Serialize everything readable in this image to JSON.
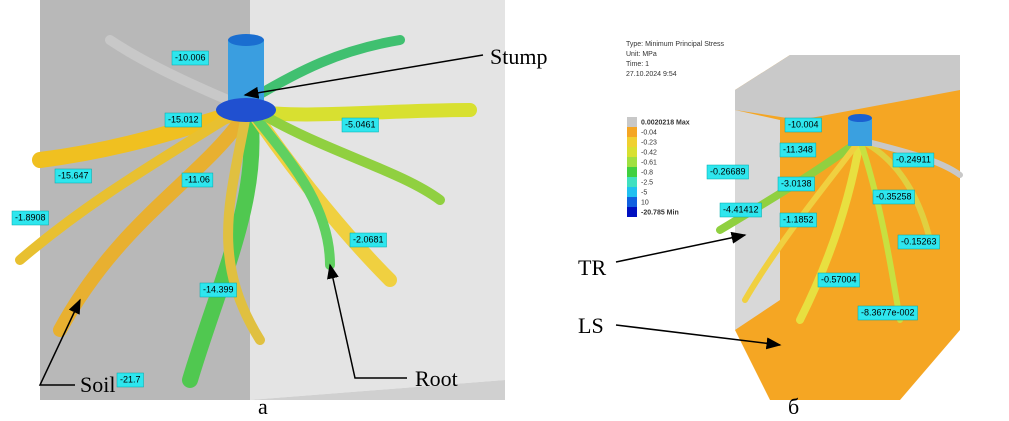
{
  "panel_a": {
    "probes": [
      "-10.006",
      "-15.012",
      "-5.0461",
      "-15.647",
      "-11.06",
      "-1.8908",
      "-2.0681",
      "-14.399",
      "-21.7"
    ],
    "annotations": {
      "stump": "Stump",
      "soil": "Soil",
      "root": "Root"
    },
    "caption": "а"
  },
  "panel_b": {
    "info": {
      "type": "Type: Minimum Principal Stress",
      "unit": "Unit: MPa",
      "time": "Time: 1",
      "date": "27.10.2024 9:54"
    },
    "legend": [
      "0.0020218 Max",
      "-0.04",
      "-0.23",
      "-0.42",
      "-0.61",
      "-0.8",
      "-2.5",
      "-5",
      "10",
      "-20.785 Min"
    ],
    "probes": [
      "-10.004",
      "-11.348",
      "-0.24911",
      "-0.26689",
      "-3.0138",
      "-0.35258",
      "-4.41412",
      "-1.1852",
      "-0.15263",
      "-0.57004",
      "-8.3677e-002"
    ],
    "annotations": {
      "tr": "TR",
      "ls": "LS"
    },
    "caption": "б"
  }
}
